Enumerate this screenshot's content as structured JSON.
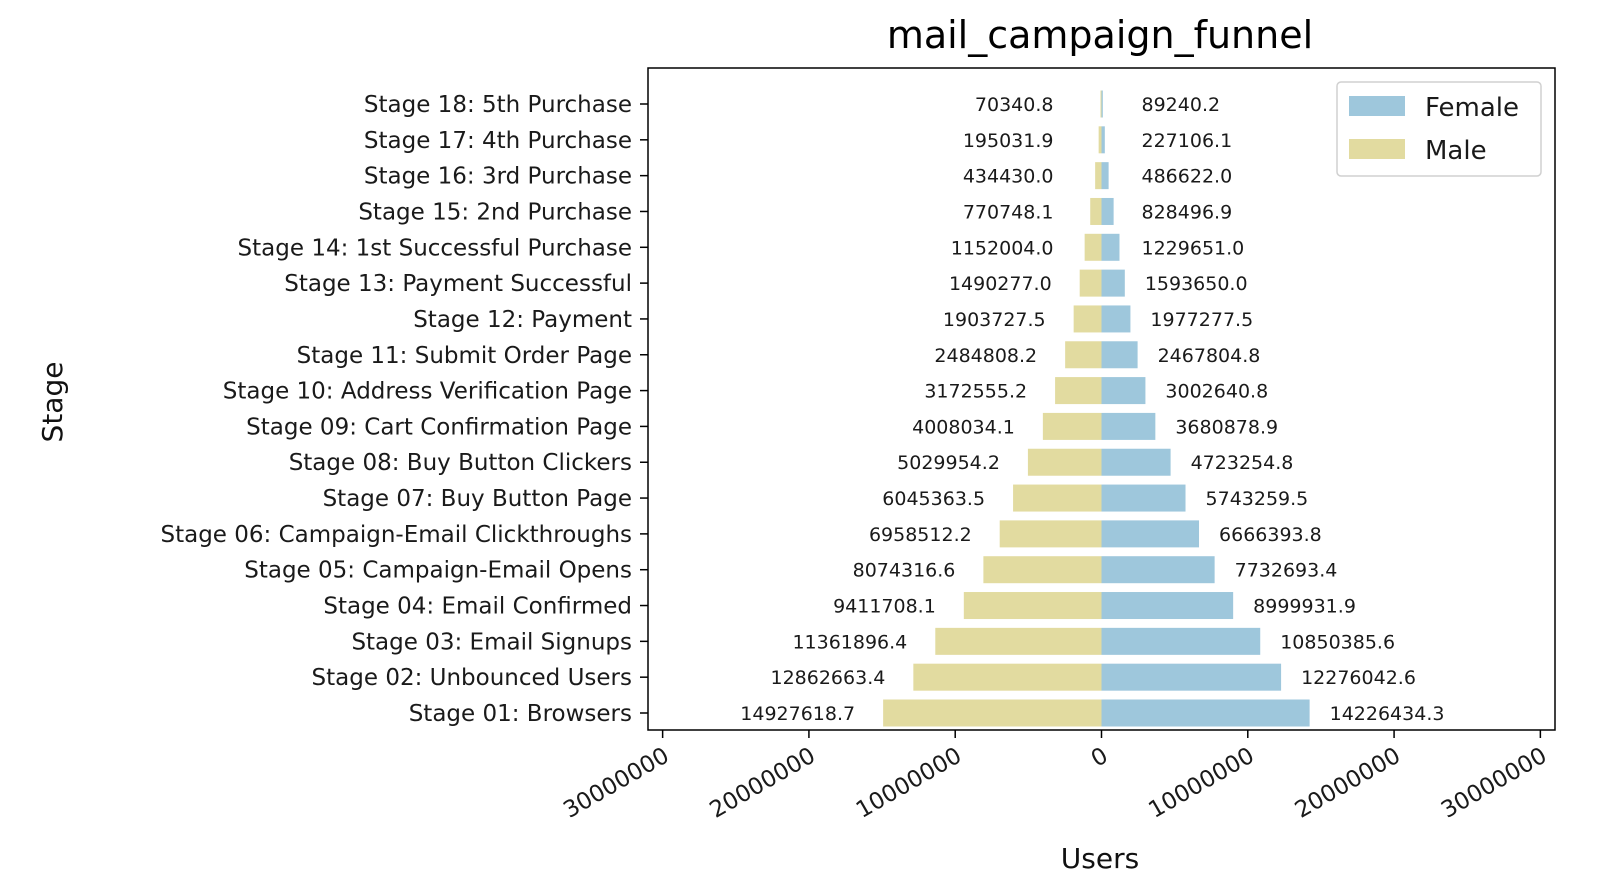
{
  "chart_data": {
    "type": "bar",
    "orientation": "horizontal-diverging",
    "title": "mail_campaign_funnel",
    "xlabel": "Users",
    "ylabel": "Stage",
    "xlim": [
      -31000000,
      31000000
    ],
    "xticks": [
      -30000000,
      -20000000,
      -10000000,
      0,
      10000000,
      20000000,
      30000000
    ],
    "xtick_labels": [
      "30000000",
      "20000000",
      "10000000",
      "0",
      "10000000",
      "20000000",
      "30000000"
    ],
    "legend_position": "top-right",
    "grid": false,
    "categories": [
      "Stage 01: Browsers",
      "Stage 02: Unbounced Users",
      "Stage 03: Email Signups",
      "Stage 04: Email Confirmed",
      "Stage 05: Campaign-Email Opens",
      "Stage 06: Campaign-Email Clickthroughs",
      "Stage 07: Buy Button Page",
      "Stage 08: Buy Button Clickers",
      "Stage 09: Cart Confirmation Page",
      "Stage 10: Address Verification Page",
      "Stage 11: Submit Order Page",
      "Stage 12: Payment",
      "Stage 13: Payment Successful",
      "Stage 14: 1st Successful Purchase",
      "Stage 15: 2nd Purchase",
      "Stage 16: 3rd Purchase",
      "Stage 17: 4th Purchase",
      "Stage 18: 5th Purchase"
    ],
    "series": [
      {
        "name": "Female",
        "color": "#9ec7dc",
        "side": "right",
        "values": [
          14226434.3,
          12276042.6,
          10850385.6,
          8999931.9,
          7732693.4,
          6666393.8,
          5743259.5,
          4723254.8,
          3680878.9,
          3002640.8,
          2467804.8,
          1977277.5,
          1593650.0,
          1229651.0,
          828496.9,
          486622.0,
          227106.1,
          89240.2
        ],
        "value_labels": [
          "14226434.3",
          "12276042.6",
          "10850385.6",
          "8999931.9",
          "7732693.4",
          "6666393.8",
          "5743259.5",
          "4723254.8",
          "3680878.9",
          "3002640.8",
          "2467804.8",
          "1977277.5",
          "1593650.0",
          "1229651.0",
          "828496.9",
          "486622.0",
          "227106.1",
          "89240.2"
        ]
      },
      {
        "name": "Male",
        "color": "#e2dba0",
        "side": "left",
        "values": [
          14927618.7,
          12862663.4,
          11361896.4,
          9411708.1,
          8074316.6,
          6958512.2,
          6045363.5,
          5029954.2,
          4008034.1,
          3172555.2,
          2484808.2,
          1903727.5,
          1490277.0,
          1152004.0,
          770748.1,
          434430.0,
          195031.9,
          70340.8
        ],
        "value_labels": [
          "14927618.7",
          "12862663.4",
          "11361896.4",
          "9411708.1",
          "8074316.6",
          "6958512.2",
          "6045363.5",
          "5029954.2",
          "4008034.1",
          "3172555.2",
          "2484808.2",
          "1903727.5",
          "1490277.0",
          "1152004.0",
          "770748.1",
          "434430.0",
          "195031.9",
          "70340.8"
        ]
      }
    ]
  }
}
